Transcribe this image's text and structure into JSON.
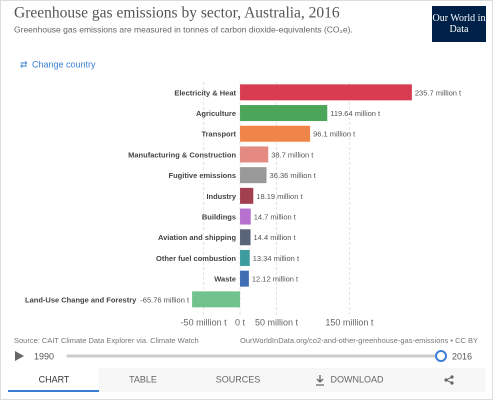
{
  "chart_data": {
    "type": "hbar",
    "title": "Greenhouse gas emissions by sector, Australia, 2016",
    "subtitle": "Greenhouse gas emissions are measured in tonnes of carbon dioxide-equivalents (CO₂e).",
    "categories": [
      "Electricity & Heat",
      "Agriculture",
      "Transport",
      "Manufacturing & Construction",
      "Fugitive emissions",
      "Industry",
      "Buildings",
      "Aviation and shipping",
      "Other fuel combustion",
      "Waste",
      "Land-Use Change and Forestry"
    ],
    "values": [
      235.7,
      119.64,
      96.1,
      38.7,
      36.36,
      18.19,
      14.7,
      14.4,
      13.34,
      12.12,
      -65.76
    ],
    "value_labels": [
      "235.7 million t",
      "119.64 million t",
      "96.1 million t",
      "38.7 million t",
      "36.36 million t",
      "18.19 million t",
      "14.7 million t",
      "14.4 million t",
      "13.34 million t",
      "12.12 million t",
      "-65.76 million t"
    ],
    "colors": [
      "#d73c50",
      "#4ca65a",
      "#ef8548",
      "#e48a82",
      "#999999",
      "#a3404f",
      "#b671cf",
      "#5a6479",
      "#3d9c9e",
      "#3f6db3",
      "#72c28e"
    ],
    "xlim": [
      -70,
      240
    ],
    "xticks": [
      {
        "value": -50,
        "label": "-50 million t"
      },
      {
        "value": 0,
        "label": "0 t"
      },
      {
        "value": 50,
        "label": "50 million t"
      },
      {
        "value": 150,
        "label": "150 million t"
      }
    ],
    "grid": true,
    "source": "Source: CAIT Climate Data Explorer via. Climate Watch",
    "url": "OurWorldInData.org/co2-and-other-greenhouse-gas-emissions • CC BY"
  },
  "controls": {
    "logo": "Our World in Data",
    "change_country": "Change country",
    "timeline": {
      "start": "1990",
      "end": "2016"
    },
    "tabs": [
      "CHART",
      "TABLE",
      "SOURCES",
      "DOWNLOAD"
    ]
  }
}
